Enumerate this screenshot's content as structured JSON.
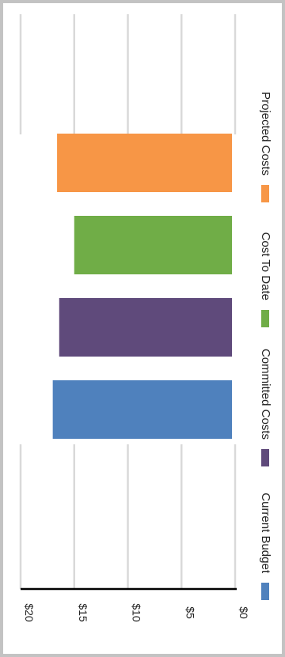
{
  "chart_data": {
    "type": "bar",
    "orientation": "horizontal",
    "rotated": true,
    "categories": [
      "Current Budget",
      "Committed Costs",
      "Cost To Date",
      "Projected Costs"
    ],
    "series": [
      {
        "values": [
          17.0,
          16.4,
          15.0,
          16.6
        ],
        "colors": [
          "#4f81bd",
          "#5f4a7b",
          "#70ad47",
          "#f79646"
        ]
      }
    ],
    "xlim": [
      0,
      20
    ],
    "ticks": [
      "$0",
      "$5",
      "$10",
      "$15",
      "$20"
    ],
    "tick_values": [
      0,
      5,
      10,
      15,
      20
    ],
    "grid": true,
    "legend": {
      "placement": "right",
      "items": [
        {
          "label": "Current Budget",
          "color": "#4f81bd"
        },
        {
          "label": "Committed Costs",
          "color": "#5f4a7b"
        },
        {
          "label": "Cost To Date",
          "color": "#70ad47"
        },
        {
          "label": "Projected Costs",
          "color": "#f79646"
        }
      ]
    }
  }
}
